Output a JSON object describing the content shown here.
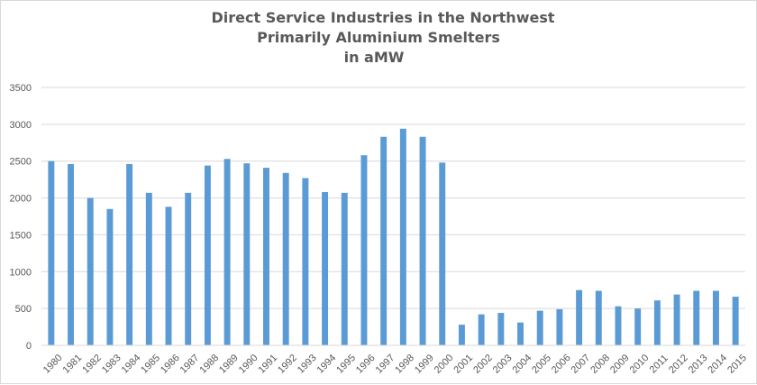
{
  "chart_data": {
    "type": "bar",
    "title": "Direct Service Industries in the Northwest\nPrimarily Aluminium Smelters\nin aMW",
    "title_lines": [
      "Direct Service Industries in the Northwest",
      "Primarily Aluminium Smelters",
      "in aMW"
    ],
    "xlabel": "",
    "ylabel": "",
    "categories": [
      "1980",
      "1981",
      "1982",
      "1983",
      "1984",
      "1985",
      "1986",
      "1987",
      "1988",
      "1989",
      "1990",
      "1991",
      "1992",
      "1993",
      "1994",
      "1995",
      "1996",
      "1997",
      "1998",
      "1999",
      "2000",
      "2001",
      "2002",
      "2003",
      "2004",
      "2005",
      "2006",
      "2007",
      "2008",
      "2009",
      "2010",
      "2011",
      "2012",
      "2013",
      "2014",
      "2015"
    ],
    "values": [
      2500,
      2460,
      2000,
      1850,
      2460,
      2070,
      1880,
      2070,
      2440,
      2530,
      2470,
      2410,
      2340,
      2270,
      2080,
      2070,
      2580,
      2830,
      2940,
      2830,
      2480,
      280,
      420,
      440,
      310,
      470,
      490,
      750,
      740,
      530,
      500,
      610,
      690,
      740,
      740,
      660
    ],
    "ylim": [
      0,
      3500
    ],
    "y_ticks": [
      "0",
      "500",
      "1000",
      "1500",
      "2000",
      "2500",
      "3000",
      "3500"
    ],
    "grid": true,
    "legend": "none",
    "bar_color": "#5b9bd5"
  }
}
